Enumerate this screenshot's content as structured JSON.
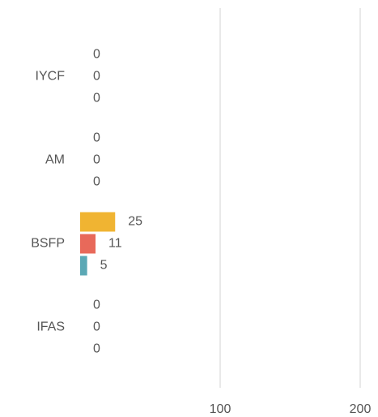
{
  "chart_data": {
    "type": "hbar",
    "categories": [
      "IYCF",
      "AM",
      "BSFP",
      "IFAS"
    ],
    "series": [
      {
        "color": "#f0b432",
        "values": [
          0,
          0,
          25,
          0
        ]
      },
      {
        "color": "#e8695a",
        "values": [
          0,
          0,
          11,
          0
        ]
      },
      {
        "color": "#5ba8b5",
        "values": [
          0,
          0,
          5,
          0
        ]
      }
    ],
    "xlim": [
      0,
      200
    ],
    "xticks": [
      100,
      200
    ],
    "grid": true
  }
}
